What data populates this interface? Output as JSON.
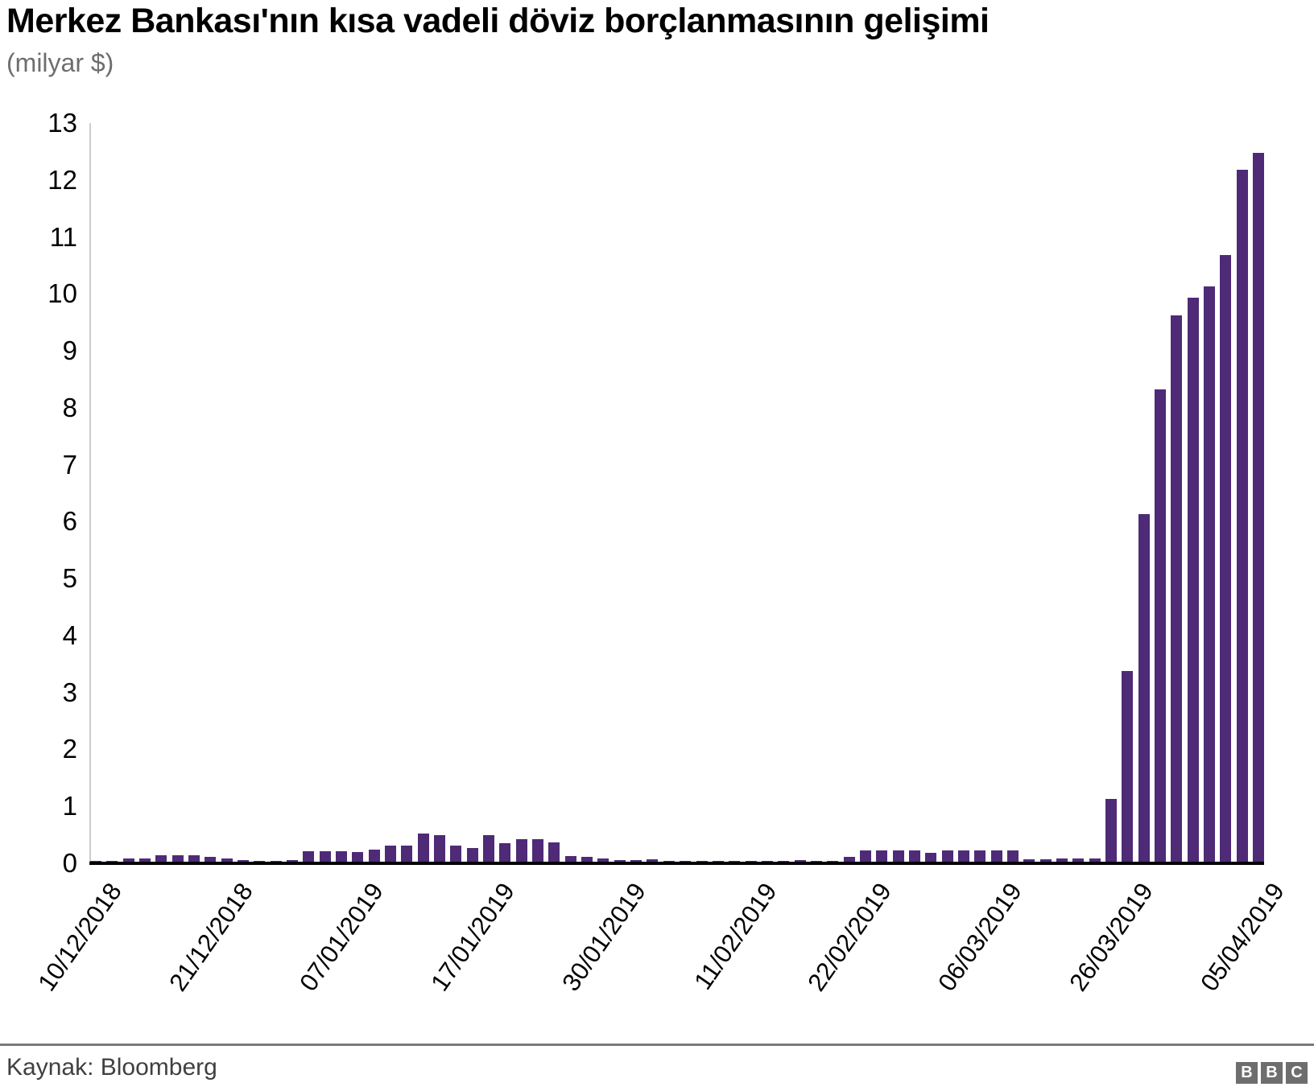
{
  "header": {
    "title": "Merkez Bankası'nın kısa vadeli döviz borçlanmasının gelişimi",
    "subtitle": "(milyar $)"
  },
  "footer": {
    "source": "Kaynak: Bloomberg",
    "logo": [
      "B",
      "B",
      "C"
    ]
  },
  "colors": {
    "bar": "#4e2a77",
    "axis_line": "#000000",
    "y_axis_line": "#cccccc",
    "subtitle_text": "#6e6e6e",
    "source_text": "#404040",
    "logo_background": "#6e6e6e"
  },
  "chart_data": {
    "type": "bar",
    "title": "Merkez Bankası'nın kısa vadeli döviz borçlanmasının gelişimi",
    "subtitle": "(milyar $)",
    "ylabel": "",
    "xlabel": "",
    "ylim": [
      0,
      13
    ],
    "yticks": [
      0,
      1,
      2,
      3,
      4,
      5,
      6,
      7,
      8,
      9,
      10,
      11,
      12,
      13
    ],
    "grid": false,
    "legend": false,
    "x_tick_labels": [
      "10/12/2018",
      "21/12/2018",
      "07/01/2019",
      "17/01/2019",
      "30/01/2019",
      "11/02/2019",
      "22/02/2019",
      "06/03/2019",
      "26/03/2019",
      "05/04/2019"
    ],
    "x_tick_indices": [
      0,
      8,
      16,
      24,
      32,
      40,
      47,
      55,
      63,
      71
    ],
    "values": [
      0.01,
      0.02,
      0.05,
      0.05,
      0.11,
      0.11,
      0.12,
      0.08,
      0.06,
      0.03,
      0.02,
      0.02,
      0.03,
      0.18,
      0.18,
      0.19,
      0.17,
      0.21,
      0.28,
      0.28,
      0.5,
      0.47,
      0.28,
      0.24,
      0.47,
      0.33,
      0.39,
      0.39,
      0.34,
      0.1,
      0.09,
      0.05,
      0.03,
      0.03,
      0.04,
      0.01,
      0.01,
      0.01,
      0.01,
      0.01,
      0.02,
      0.02,
      0.02,
      0.03,
      0.02,
      0.02,
      0.08,
      0.2,
      0.2,
      0.2,
      0.2,
      0.16,
      0.2,
      0.2,
      0.2,
      0.2,
      0.2,
      0.04,
      0.04,
      0.05,
      0.06,
      0.06,
      1.1,
      3.35,
      6.1,
      8.3,
      9.6,
      9.9,
      10.1,
      10.65,
      12.15,
      12.45
    ]
  }
}
